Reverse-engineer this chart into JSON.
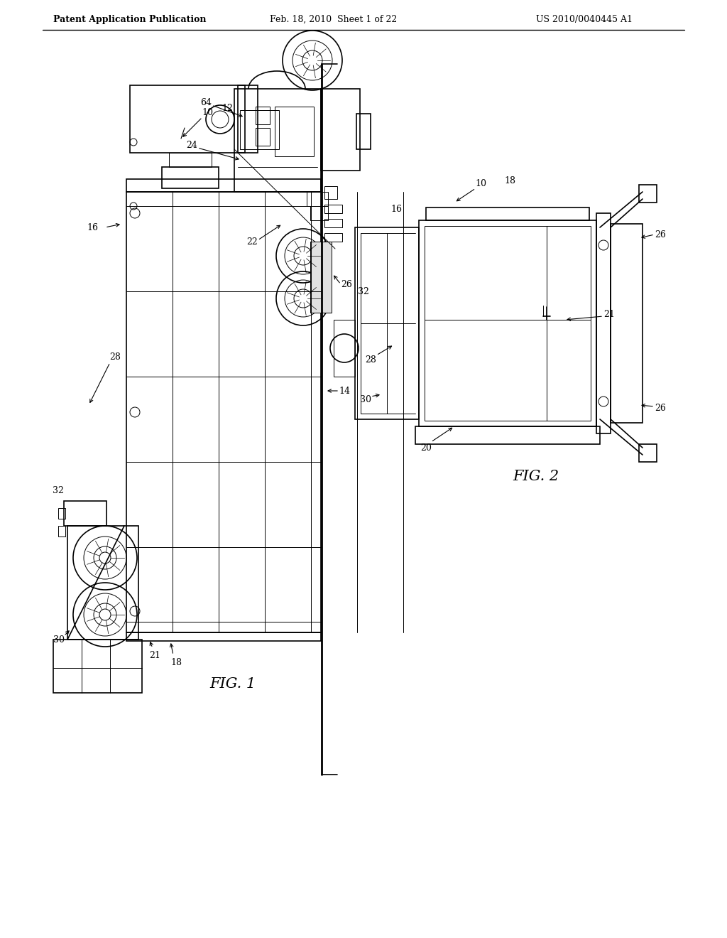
{
  "bg_color": "#ffffff",
  "line_color": "#000000",
  "header_left": "Patent Application Publication",
  "header_center": "Feb. 18, 2010  Sheet 1 of 22",
  "header_right": "US 2010/0040445 A1",
  "fig1_label": "FIG. 1",
  "fig2_label": "FIG. 2"
}
